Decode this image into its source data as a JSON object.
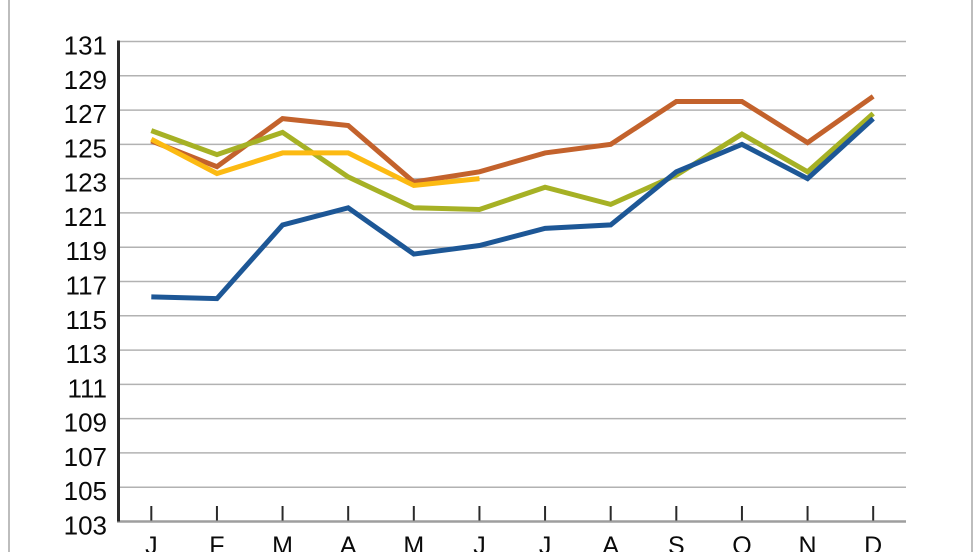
{
  "chart_data": {
    "type": "line",
    "title": "",
    "xlabel": "",
    "ylabel": "",
    "categories": [
      "J",
      "F",
      "M",
      "A",
      "M",
      "J",
      "J",
      "A",
      "S",
      "O",
      "N",
      "D"
    ],
    "yticks": [
      131,
      129,
      127,
      125,
      123,
      121,
      119,
      117,
      115,
      113,
      111,
      109,
      107,
      105,
      103
    ],
    "ylim": [
      103,
      131
    ],
    "grid": true,
    "legend_position": "none",
    "series": [
      {
        "name": "orange-line",
        "color": "#c3622c",
        "values": [
          125.2,
          123.7,
          126.5,
          126.1,
          122.8,
          123.4,
          124.5,
          125.0,
          127.5,
          127.5,
          125.1,
          127.8
        ]
      },
      {
        "name": "green-line",
        "color": "#a6b125",
        "values": [
          125.8,
          124.4,
          125.7,
          123.1,
          121.3,
          121.2,
          122.5,
          121.5,
          123.2,
          125.6,
          123.4,
          126.8
        ]
      },
      {
        "name": "blue-line",
        "color": "#1d5796",
        "values": [
          116.1,
          116.0,
          120.3,
          121.3,
          118.6,
          119.1,
          120.1,
          120.3,
          123.4,
          125.0,
          123.0,
          126.5
        ]
      },
      {
        "name": "yellow-line",
        "color": "#fcba12",
        "values": [
          125.3,
          123.3,
          124.5,
          124.5,
          122.6,
          123.0,
          null,
          null,
          null,
          null,
          null,
          null
        ]
      }
    ],
    "style": {
      "gridline_color": "#b2b2b2",
      "x_axis_line_color": "#9e9e9e",
      "y_axis_line_color": "#2a2a2a",
      "tick_color": "#2a2a2a",
      "label_color": "#0a0a0a",
      "frame_edge_color": "#bdbdbd",
      "background": "#ffffff"
    }
  }
}
